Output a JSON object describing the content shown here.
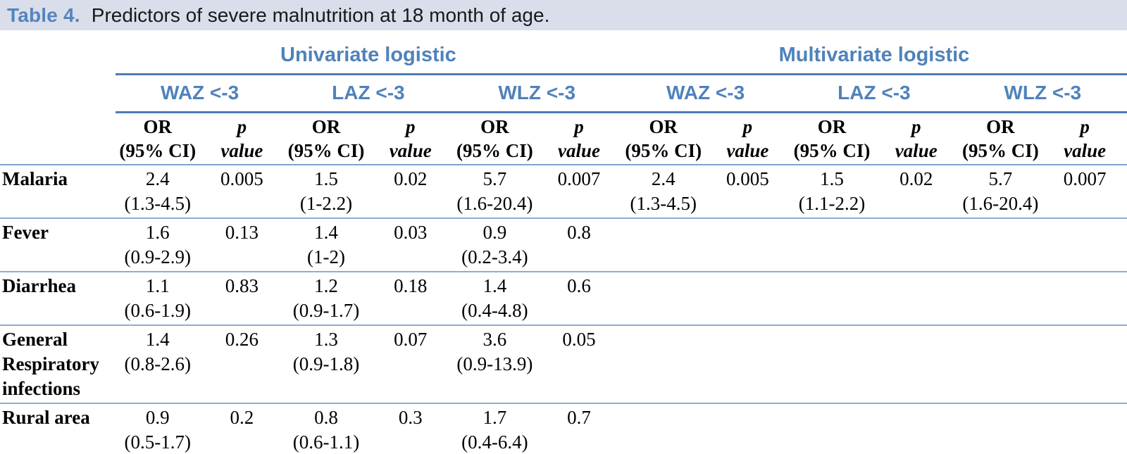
{
  "title": {
    "label": "Table 4.",
    "text": "Predictors of severe malnutrition at 18 month of age."
  },
  "colors": {
    "caption_bar_bg": "#dadeeb",
    "caption_label_blue": "#5585bd",
    "header_text_blue": "#4f82bb",
    "header_rule_blue": "#4d7bb5",
    "row_rule_light_blue": "#8eadd3",
    "body_text": "#000000"
  },
  "table": {
    "group_headers": [
      "Univariate logistic",
      "Multivariate logistic"
    ],
    "outcome_headers": [
      "WAZ <-3",
      "LAZ <-3",
      "WLZ <-3",
      "WAZ <-3",
      "LAZ <-3",
      "WLZ <-3"
    ],
    "measure_headers": {
      "or_line1": "OR",
      "or_line2": "(95% CI)",
      "p_line1": "p",
      "p_line2": "value"
    },
    "rows": [
      {
        "label": "Malaria",
        "cells": [
          {
            "or": "2.4",
            "ci": "(1.3-4.5)",
            "p": "0.005"
          },
          {
            "or": "1.5",
            "ci": "(1-2.2)",
            "p": "0.02"
          },
          {
            "or": "5.7",
            "ci": "(1.6-20.4)",
            "p": "0.007"
          },
          {
            "or": "2.4",
            "ci": "(1.3-4.5)",
            "p": "0.005"
          },
          {
            "or": "1.5",
            "ci": "(1.1-2.2)",
            "p": "0.02"
          },
          {
            "or": "5.7",
            "ci": "(1.6-20.4)",
            "p": "0.007"
          }
        ]
      },
      {
        "label": "Fever",
        "cells": [
          {
            "or": "1.6",
            "ci": "(0.9-2.9)",
            "p": "0.13"
          },
          {
            "or": "1.4",
            "ci": "(1-2)",
            "p": "0.03"
          },
          {
            "or": "0.9",
            "ci": "(0.2-3.4)",
            "p": "0.8"
          },
          null,
          null,
          null
        ]
      },
      {
        "label": "Diarrhea",
        "cells": [
          {
            "or": "1.1",
            "ci": "(0.6-1.9)",
            "p": "0.83"
          },
          {
            "or": "1.2",
            "ci": "(0.9-1.7)",
            "p": "0.18"
          },
          {
            "or": "1.4",
            "ci": "(0.4-4.8)",
            "p": "0.6"
          },
          null,
          null,
          null
        ]
      },
      {
        "label": "General Respiratory infections",
        "cells": [
          {
            "or": "1.4",
            "ci": "(0.8-2.6)",
            "p": "0.26"
          },
          {
            "or": "1.3",
            "ci": "(0.9-1.8)",
            "p": "0.07"
          },
          {
            "or": "3.6",
            "ci": "(0.9-13.9)",
            "p": "0.05"
          },
          null,
          null,
          null
        ]
      },
      {
        "label": "Rural area",
        "cells": [
          {
            "or": "0.9",
            "ci": "(0.5-1.7)",
            "p": "0.2"
          },
          {
            "or": "0.8",
            "ci": "(0.6-1.1)",
            "p": "0.3"
          },
          {
            "or": "1.7",
            "ci": "(0.4-6.4)",
            "p": "0.7"
          },
          null,
          null,
          null
        ]
      }
    ]
  }
}
